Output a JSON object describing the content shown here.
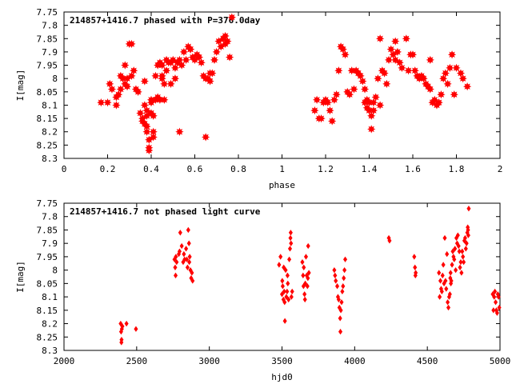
{
  "chart_data": [
    {
      "type": "scatter",
      "title": "214857+1416.7 phased with P=376.0day",
      "xlabel": "phase",
      "ylabel": "I[mag]",
      "xlim": [
        0,
        2
      ],
      "ylim": [
        7.75,
        8.3
      ],
      "y_inverted": true,
      "marker": "star",
      "color": "#ff0000",
      "x_ticks": [
        0,
        0.2,
        0.4,
        0.6,
        0.8,
        1,
        1.2,
        1.4,
        1.6,
        1.8,
        2
      ],
      "y_ticks": [
        7.75,
        7.8,
        7.85,
        7.9,
        7.95,
        8,
        8.05,
        8.1,
        8.15,
        8.2,
        8.25,
        8.3
      ],
      "x_tick_labels": [
        "0",
        "0.2",
        "0.4",
        "0.6",
        "0.8",
        "1",
        "1.2",
        "1.4",
        "1.6",
        "1.8",
        "2"
      ],
      "y_tick_labels": [
        "7.75",
        "7.8",
        "7.85",
        "7.9",
        "7.95",
        "8",
        "8.05",
        "8.1",
        "8.15",
        "8.2",
        "8.25",
        "8.3"
      ],
      "points": [
        [
          0.17,
          8.09
        ],
        [
          0.2,
          8.09
        ],
        [
          0.21,
          8.02
        ],
        [
          0.22,
          8.04
        ],
        [
          0.24,
          8.07
        ],
        [
          0.24,
          8.1
        ],
        [
          0.25,
          8.06
        ],
        [
          0.26,
          8.04
        ],
        [
          0.26,
          7.99
        ],
        [
          0.27,
          8.0
        ],
        [
          0.28,
          7.95
        ],
        [
          0.28,
          8.02
        ],
        [
          0.29,
          8.0
        ],
        [
          0.29,
          8.03
        ],
        [
          0.3,
          7.87
        ],
        [
          0.31,
          7.87
        ],
        [
          0.31,
          7.99
        ],
        [
          0.32,
          7.97
        ],
        [
          0.33,
          8.04
        ],
        [
          0.34,
          8.05
        ],
        [
          0.35,
          8.13
        ],
        [
          0.36,
          8.15
        ],
        [
          0.36,
          8.16
        ],
        [
          0.37,
          8.01
        ],
        [
          0.37,
          8.1
        ],
        [
          0.37,
          8.17
        ],
        [
          0.38,
          8.14
        ],
        [
          0.38,
          8.18
        ],
        [
          0.38,
          8.2
        ],
        [
          0.38,
          8.12
        ],
        [
          0.39,
          8.23
        ],
        [
          0.39,
          8.26
        ],
        [
          0.39,
          8.27
        ],
        [
          0.4,
          8.13
        ],
        [
          0.4,
          8.09
        ],
        [
          0.4,
          8.08
        ],
        [
          0.41,
          8.14
        ],
        [
          0.41,
          8.2
        ],
        [
          0.41,
          8.22
        ],
        [
          0.42,
          8.08
        ],
        [
          0.42,
          7.99
        ],
        [
          0.43,
          7.95
        ],
        [
          0.43,
          8.07
        ],
        [
          0.44,
          7.94
        ],
        [
          0.44,
          8.08
        ],
        [
          0.45,
          7.99
        ],
        [
          0.45,
          8.0
        ],
        [
          0.45,
          7.95
        ],
        [
          0.46,
          8.02
        ],
        [
          0.46,
          8.08
        ],
        [
          0.47,
          7.93
        ],
        [
          0.47,
          7.97
        ],
        [
          0.48,
          7.94
        ],
        [
          0.49,
          8.02
        ],
        [
          0.49,
          7.94
        ],
        [
          0.5,
          7.93
        ],
        [
          0.51,
          7.96
        ],
        [
          0.51,
          8.0
        ],
        [
          0.52,
          7.94
        ],
        [
          0.53,
          8.2
        ],
        [
          0.53,
          7.93
        ],
        [
          0.54,
          7.95
        ],
        [
          0.55,
          7.9
        ],
        [
          0.56,
          7.93
        ],
        [
          0.57,
          7.88
        ],
        [
          0.58,
          7.89
        ],
        [
          0.58,
          7.89
        ],
        [
          0.59,
          7.92
        ],
        [
          0.6,
          7.93
        ],
        [
          0.61,
          7.91
        ],
        [
          0.62,
          7.92
        ],
        [
          0.63,
          7.94
        ],
        [
          0.64,
          7.99
        ],
        [
          0.65,
          8.0
        ],
        [
          0.65,
          8.22
        ],
        [
          0.66,
          8.0
        ],
        [
          0.67,
          7.98
        ],
        [
          0.67,
          8.01
        ],
        [
          0.68,
          7.98
        ],
        [
          0.69,
          7.93
        ],
        [
          0.7,
          7.9
        ],
        [
          0.71,
          7.86
        ],
        [
          0.72,
          7.88
        ],
        [
          0.73,
          7.85
        ],
        [
          0.74,
          7.84
        ],
        [
          0.75,
          7.86
        ],
        [
          0.76,
          7.92
        ],
        [
          0.77,
          7.77
        ],
        [
          0.74,
          7.87
        ],
        [
          1.15,
          8.12
        ],
        [
          1.16,
          8.08
        ],
        [
          1.17,
          8.15
        ],
        [
          1.18,
          8.15
        ],
        [
          1.19,
          8.09
        ],
        [
          1.2,
          8.08
        ],
        [
          1.21,
          8.09
        ],
        [
          1.22,
          8.12
        ],
        [
          1.23,
          8.16
        ],
        [
          1.24,
          8.08
        ],
        [
          1.25,
          8.06
        ],
        [
          1.26,
          7.97
        ],
        [
          1.27,
          7.88
        ],
        [
          1.28,
          7.89
        ],
        [
          1.29,
          7.91
        ],
        [
          1.3,
          8.05
        ],
        [
          1.31,
          8.06
        ],
        [
          1.32,
          7.97
        ],
        [
          1.33,
          8.04
        ],
        [
          1.34,
          7.97
        ],
        [
          1.35,
          7.98
        ],
        [
          1.36,
          7.99
        ],
        [
          1.37,
          8.01
        ],
        [
          1.38,
          8.04
        ],
        [
          1.38,
          8.09
        ],
        [
          1.39,
          8.11
        ],
        [
          1.39,
          8.08
        ],
        [
          1.4,
          8.12
        ],
        [
          1.4,
          8.09
        ],
        [
          1.41,
          8.19
        ],
        [
          1.41,
          8.14
        ],
        [
          1.42,
          8.09
        ],
        [
          1.42,
          8.12
        ],
        [
          1.43,
          8.07
        ],
        [
          1.44,
          8.0
        ],
        [
          1.45,
          8.1
        ],
        [
          1.45,
          7.85
        ],
        [
          1.46,
          7.97
        ],
        [
          1.47,
          7.98
        ],
        [
          1.48,
          8.02
        ],
        [
          1.49,
          7.93
        ],
        [
          1.5,
          7.89
        ],
        [
          1.51,
          7.91
        ],
        [
          1.52,
          7.93
        ],
        [
          1.52,
          7.86
        ],
        [
          1.53,
          7.9
        ],
        [
          1.54,
          7.94
        ],
        [
          1.55,
          7.96
        ],
        [
          1.57,
          7.85
        ],
        [
          1.58,
          7.97
        ],
        [
          1.59,
          7.91
        ],
        [
          1.6,
          7.91
        ],
        [
          1.61,
          7.97
        ],
        [
          1.62,
          7.99
        ],
        [
          1.63,
          8.0
        ],
        [
          1.64,
          7.99
        ],
        [
          1.65,
          8.0
        ],
        [
          1.66,
          8.02
        ],
        [
          1.67,
          8.03
        ],
        [
          1.68,
          8.04
        ],
        [
          1.68,
          7.93
        ],
        [
          1.69,
          8.09
        ],
        [
          1.7,
          8.08
        ],
        [
          1.71,
          8.1
        ],
        [
          1.72,
          8.09
        ],
        [
          1.73,
          8.06
        ],
        [
          1.74,
          8.0
        ],
        [
          1.75,
          7.98
        ],
        [
          1.76,
          8.02
        ],
        [
          1.77,
          7.96
        ],
        [
          1.78,
          7.91
        ],
        [
          1.79,
          8.06
        ],
        [
          1.8,
          7.96
        ],
        [
          1.82,
          7.98
        ],
        [
          1.83,
          8.0
        ],
        [
          1.85,
          8.03
        ]
      ]
    },
    {
      "type": "scatter",
      "title": "214857+1416.7 not phased light curve",
      "xlabel": "hjd0",
      "ylabel": "I[mag]",
      "xlim": [
        2000,
        5000
      ],
      "ylim": [
        7.75,
        8.3
      ],
      "y_inverted": true,
      "marker": "diamond",
      "color": "#ff0000",
      "x_ticks": [
        2000,
        2500,
        3000,
        3500,
        4000,
        4500,
        5000
      ],
      "y_ticks": [
        7.75,
        7.8,
        7.85,
        7.9,
        7.95,
        8,
        8.05,
        8.1,
        8.15,
        8.2,
        8.25,
        8.3
      ],
      "x_tick_labels": [
        "2000",
        "2500",
        "3000",
        "3500",
        "4000",
        "4500",
        "5000"
      ],
      "y_tick_labels": [
        "7.75",
        "7.8",
        "7.85",
        "7.9",
        "7.95",
        "8",
        "8.05",
        "8.1",
        "8.15",
        "8.2",
        "8.25",
        "8.3"
      ],
      "points": [
        [
          2390,
          8.2
        ],
        [
          2393,
          8.23
        ],
        [
          2395,
          8.27
        ],
        [
          2396,
          8.26
        ],
        [
          2398,
          8.22
        ],
        [
          2402,
          8.21
        ],
        [
          2430,
          8.2
        ],
        [
          2495,
          8.22
        ],
        [
          2760,
          7.96
        ],
        [
          2765,
          7.99
        ],
        [
          2768,
          8.02
        ],
        [
          2770,
          7.95
        ],
        [
          2775,
          7.97
        ],
        [
          2790,
          7.94
        ],
        [
          2795,
          7.93
        ],
        [
          2800,
          7.86
        ],
        [
          2810,
          7.91
        ],
        [
          2820,
          7.97
        ],
        [
          2825,
          7.94
        ],
        [
          2830,
          7.96
        ],
        [
          2840,
          7.92
        ],
        [
          2845,
          7.96
        ],
        [
          2850,
          7.99
        ],
        [
          2855,
          7.85
        ],
        [
          2860,
          7.9
        ],
        [
          2862,
          7.97
        ],
        [
          2865,
          7.95
        ],
        [
          2870,
          8.0
        ],
        [
          2875,
          8.03
        ],
        [
          2880,
          8.01
        ],
        [
          2885,
          8.04
        ],
        [
          3480,
          7.98
        ],
        [
          3490,
          7.95
        ],
        [
          3500,
          8.09
        ],
        [
          3502,
          8.04
        ],
        [
          3505,
          8.06
        ],
        [
          3510,
          8.11
        ],
        [
          3512,
          7.99
        ],
        [
          3515,
          8.08
        ],
        [
          3518,
          8.12
        ],
        [
          3520,
          8.19
        ],
        [
          3525,
          8.0
        ],
        [
          3530,
          8.1
        ],
        [
          3535,
          8.08
        ],
        [
          3538,
          8.02
        ],
        [
          3540,
          8.05
        ],
        [
          3545,
          8.11
        ],
        [
          3550,
          7.96
        ],
        [
          3555,
          7.92
        ],
        [
          3558,
          7.88
        ],
        [
          3560,
          7.86
        ],
        [
          3562,
          7.9
        ],
        [
          3565,
          8.1
        ],
        [
          3570,
          8.08
        ],
        [
          3640,
          7.97
        ],
        [
          3645,
          8.02
        ],
        [
          3648,
          8.06
        ],
        [
          3650,
          7.99
        ],
        [
          3655,
          8.09
        ],
        [
          3658,
          8.11
        ],
        [
          3660,
          8.05
        ],
        [
          3665,
          7.95
        ],
        [
          3670,
          8.02
        ],
        [
          3675,
          8.06
        ],
        [
          3678,
          8.03
        ],
        [
          3680,
          7.91
        ],
        [
          3685,
          8.01
        ],
        [
          3860,
          8.0
        ],
        [
          3865,
          8.02
        ],
        [
          3870,
          8.04
        ],
        [
          3880,
          8.06
        ],
        [
          3885,
          8.1
        ],
        [
          3890,
          8.11
        ],
        [
          3895,
          8.14
        ],
        [
          3900,
          8.18
        ],
        [
          3902,
          8.23
        ],
        [
          3905,
          8.15
        ],
        [
          3910,
          8.12
        ],
        [
          3915,
          8.08
        ],
        [
          3920,
          8.06
        ],
        [
          3925,
          8.03
        ],
        [
          3930,
          8.0
        ],
        [
          3935,
          7.96
        ],
        [
          4235,
          7.88
        ],
        [
          4240,
          7.89
        ],
        [
          4410,
          7.95
        ],
        [
          4415,
          7.99
        ],
        [
          4418,
          8.02
        ],
        [
          4420,
          8.01
        ],
        [
          4580,
          8.01
        ],
        [
          4585,
          8.1
        ],
        [
          4590,
          8.04
        ],
        [
          4595,
          8.07
        ],
        [
          4600,
          8.08
        ],
        [
          4605,
          8.02
        ],
        [
          4610,
          7.98
        ],
        [
          4615,
          8.05
        ],
        [
          4620,
          7.88
        ],
        [
          4625,
          8.04
        ],
        [
          4630,
          8.07
        ],
        [
          4635,
          7.94
        ],
        [
          4640,
          8.12
        ],
        [
          4645,
          8.14
        ],
        [
          4650,
          8.1
        ],
        [
          4655,
          8.09
        ],
        [
          4658,
          8.03
        ],
        [
          4660,
          8.01
        ],
        [
          4662,
          8.05
        ],
        [
          4665,
          8.04
        ],
        [
          4670,
          7.98
        ],
        [
          4675,
          7.93
        ],
        [
          4680,
          7.95
        ],
        [
          4685,
          7.96
        ],
        [
          4690,
          7.92
        ],
        [
          4695,
          8.0
        ],
        [
          4700,
          7.88
        ],
        [
          4705,
          7.9
        ],
        [
          4710,
          7.87
        ],
        [
          4715,
          7.91
        ],
        [
          4720,
          7.93
        ],
        [
          4725,
          7.99
        ],
        [
          4730,
          7.97
        ],
        [
          4735,
          8.01
        ],
        [
          4740,
          7.93
        ],
        [
          4745,
          7.95
        ],
        [
          4750,
          7.97
        ],
        [
          4755,
          7.89
        ],
        [
          4760,
          7.88
        ],
        [
          4765,
          7.92
        ],
        [
          4770,
          7.9
        ],
        [
          4775,
          7.86
        ],
        [
          4778,
          7.84
        ],
        [
          4780,
          7.85
        ],
        [
          4782,
          7.87
        ],
        [
          4785,
          7.77
        ],
        [
          4950,
          8.09
        ],
        [
          4955,
          8.15
        ],
        [
          4960,
          8.1
        ],
        [
          4965,
          8.08
        ],
        [
          4970,
          8.12
        ],
        [
          4975,
          8.15
        ],
        [
          4980,
          8.16
        ],
        [
          4985,
          8.09
        ],
        [
          4990,
          8.1
        ],
        [
          4995,
          8.14
        ]
      ]
    }
  ]
}
